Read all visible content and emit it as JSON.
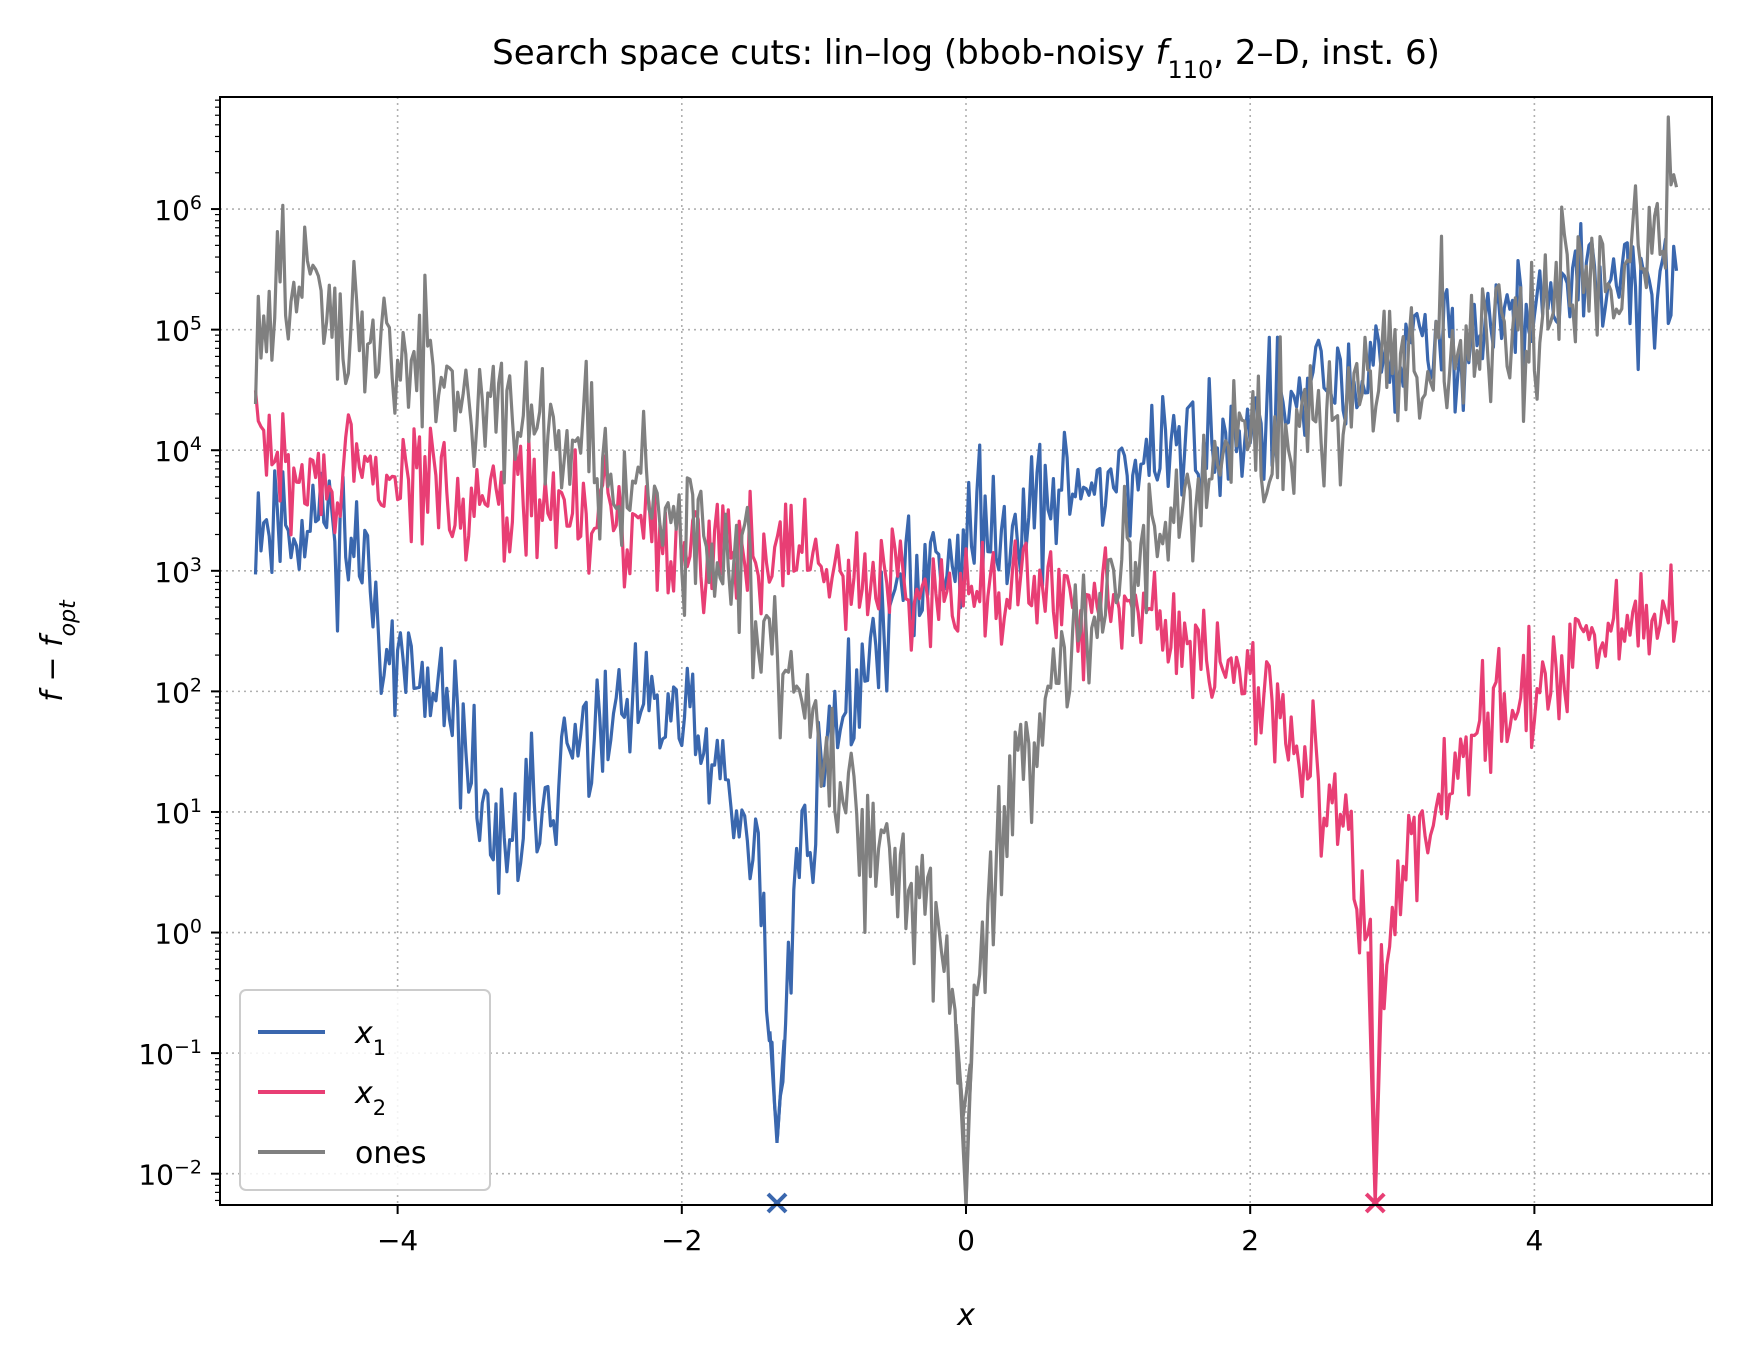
{
  "chart_data": {
    "type": "line",
    "title": "Search space cuts: lin–log (bbob-noisy f110, 2–D, inst. 6)",
    "title_parts": {
      "prefix": "Search space cuts: lin–log (bbob-noisy ",
      "f": "f",
      "f_sub": "110",
      "suffix": ", 2–D, inst. 6)"
    },
    "xlabel": "x",
    "ylabel": {
      "main": "f − f",
      "sub": "opt"
    },
    "xlim": [
      -5.25,
      5.25
    ],
    "ylim": [
      0.0055,
      8500000
    ],
    "y_scale": "log",
    "grid": true,
    "legend_position": "lower-left",
    "x_ticks": [
      {
        "value": -4,
        "label": "−4"
      },
      {
        "value": -2,
        "label": "−2"
      },
      {
        "value": 0,
        "label": "0"
      },
      {
        "value": 2,
        "label": "2"
      },
      {
        "value": 4,
        "label": "4"
      }
    ],
    "y_ticks": [
      {
        "value": 0.01,
        "base": "10",
        "exp": "−2"
      },
      {
        "value": 0.1,
        "base": "10",
        "exp": "−1"
      },
      {
        "value": 1,
        "base": "10",
        "exp": "0"
      },
      {
        "value": 10,
        "base": "10",
        "exp": "1"
      },
      {
        "value": 100,
        "base": "10",
        "exp": "2"
      },
      {
        "value": 1000,
        "base": "10",
        "exp": "3"
      },
      {
        "value": 10000,
        "base": "10",
        "exp": "4"
      },
      {
        "value": 100000,
        "base": "10",
        "exp": "5"
      },
      {
        "value": 1000000,
        "base": "10",
        "exp": "6"
      }
    ],
    "series": [
      {
        "name": "x1",
        "legend_main": "x",
        "legend_sub": "1",
        "color": "#3a67ae",
        "points": [
          [
            -5.0,
            3000
          ],
          [
            -4.75,
            2500
          ],
          [
            -4.5,
            3000
          ],
          [
            -4.25,
            1200
          ],
          [
            -4.0,
            150
          ],
          [
            -3.75,
            80
          ],
          [
            -3.5,
            30
          ],
          [
            -3.25,
            3
          ],
          [
            -3.0,
            15
          ],
          [
            -2.75,
            30
          ],
          [
            -2.5,
            50
          ],
          [
            -2.25,
            60
          ],
          [
            -2.0,
            60
          ],
          [
            -1.75,
            20
          ],
          [
            -1.6,
            8
          ],
          [
            -1.45,
            3
          ],
          [
            -1.33,
            0.018
          ],
          [
            -1.2,
            3
          ],
          [
            -1.0,
            25
          ],
          [
            -0.75,
            150
          ],
          [
            -0.5,
            500
          ],
          [
            -0.25,
            1200
          ],
          [
            0.0,
            1800
          ],
          [
            0.25,
            2500
          ],
          [
            0.5,
            3500
          ],
          [
            0.75,
            4500
          ],
          [
            1.0,
            6000
          ],
          [
            1.25,
            8000
          ],
          [
            1.5,
            10000
          ],
          [
            1.75,
            12000
          ],
          [
            2.0,
            16000
          ],
          [
            2.25,
            22000
          ],
          [
            2.5,
            30000
          ],
          [
            2.75,
            40000
          ],
          [
            3.0,
            55000
          ],
          [
            3.25,
            70000
          ],
          [
            3.5,
            90000
          ],
          [
            3.75,
            120000
          ],
          [
            4.0,
            150000
          ],
          [
            4.25,
            190000
          ],
          [
            4.5,
            230000
          ],
          [
            4.75,
            280000
          ],
          [
            5.0,
            140000
          ]
        ],
        "noise": {
          "seed": 11,
          "amp": 0.4
        }
      },
      {
        "name": "x2",
        "legend_main": "x",
        "legend_sub": "2",
        "color": "#e83e74",
        "points": [
          [
            -5.0,
            18000
          ],
          [
            -4.75,
            5000
          ],
          [
            -4.5,
            5500
          ],
          [
            -4.25,
            6000
          ],
          [
            -4.0,
            5500
          ],
          [
            -3.75,
            5000
          ],
          [
            -3.5,
            4500
          ],
          [
            -3.25,
            4000
          ],
          [
            -3.0,
            3500
          ],
          [
            -2.75,
            3000
          ],
          [
            -2.5,
            2600
          ],
          [
            -2.25,
            2300
          ],
          [
            -2.0,
            2000
          ],
          [
            -1.75,
            1800
          ],
          [
            -1.5,
            1500
          ],
          [
            -1.25,
            1300
          ],
          [
            -1.0,
            1100
          ],
          [
            -0.75,
            900
          ],
          [
            -0.5,
            800
          ],
          [
            -0.25,
            800
          ],
          [
            0.0,
            800
          ],
          [
            0.25,
            750
          ],
          [
            0.5,
            650
          ],
          [
            0.75,
            550
          ],
          [
            1.0,
            450
          ],
          [
            1.25,
            380
          ],
          [
            1.5,
            300
          ],
          [
            1.75,
            200
          ],
          [
            2.0,
            100
          ],
          [
            2.25,
            50
          ],
          [
            2.5,
            20
          ],
          [
            2.7,
            6
          ],
          [
            2.85,
            0.5
          ],
          [
            2.88,
            0.0055
          ],
          [
            2.92,
            0.5
          ],
          [
            3.1,
            3
          ],
          [
            3.25,
            10
          ],
          [
            3.5,
            30
          ],
          [
            3.75,
            70
          ],
          [
            4.0,
            120
          ],
          [
            4.25,
            180
          ],
          [
            4.5,
            250
          ],
          [
            4.75,
            350
          ],
          [
            5.0,
            450
          ]
        ],
        "noise": {
          "seed": 29,
          "amp": 0.35
        }
      },
      {
        "name": "ones",
        "legend_main": "ones",
        "legend_sub": "",
        "color": "#808080",
        "points": [
          [
            -5.0,
            65000
          ],
          [
            -4.75,
            250000
          ],
          [
            -4.5,
            200000
          ],
          [
            -4.25,
            90000
          ],
          [
            -4.0,
            60000
          ],
          [
            -3.75,
            40000
          ],
          [
            -3.5,
            30000
          ],
          [
            -3.25,
            22000
          ],
          [
            -3.0,
            18000
          ],
          [
            -2.75,
            12000
          ],
          [
            -2.5,
            8000
          ],
          [
            -2.25,
            4000
          ],
          [
            -2.0,
            2500
          ],
          [
            -1.75,
            1500
          ],
          [
            -1.5,
            600
          ],
          [
            -1.25,
            150
          ],
          [
            -1.0,
            40
          ],
          [
            -0.75,
            8
          ],
          [
            -0.5,
            3
          ],
          [
            -0.25,
            2
          ],
          [
            -0.1,
            0.5
          ],
          [
            -0.02,
            0.03
          ],
          [
            0.0,
            0.0055
          ],
          [
            0.04,
            0.2
          ],
          [
            0.15,
            1.5
          ],
          [
            0.3,
            10
          ],
          [
            0.5,
            60
          ],
          [
            0.75,
            200
          ],
          [
            1.0,
            600
          ],
          [
            1.25,
            1500
          ],
          [
            1.5,
            3000
          ],
          [
            1.75,
            6000
          ],
          [
            2.0,
            10000
          ],
          [
            2.25,
            15000
          ],
          [
            2.5,
            22000
          ],
          [
            2.75,
            30000
          ],
          [
            3.0,
            45000
          ],
          [
            3.25,
            60000
          ],
          [
            3.5,
            80000
          ],
          [
            3.75,
            110000
          ],
          [
            4.0,
            150000
          ],
          [
            4.25,
            200000
          ],
          [
            4.5,
            280000
          ],
          [
            4.75,
            380000
          ],
          [
            5.0,
            1900000
          ]
        ],
        "noise": {
          "seed": 47,
          "amp": 0.45
        }
      }
    ],
    "markers": [
      {
        "x": -1.33,
        "color": "#3a67ae",
        "symbol": "×"
      },
      {
        "x": 2.88,
        "color": "#e83e74",
        "symbol": "×"
      }
    ],
    "legend_entries": [
      {
        "series": "x1",
        "main": "x",
        "sub": "1",
        "color": "#3a67ae"
      },
      {
        "series": "x2",
        "main": "x",
        "sub": "2",
        "color": "#e83e74"
      },
      {
        "series": "ones",
        "main": "ones",
        "sub": "",
        "color": "#808080"
      }
    ]
  }
}
